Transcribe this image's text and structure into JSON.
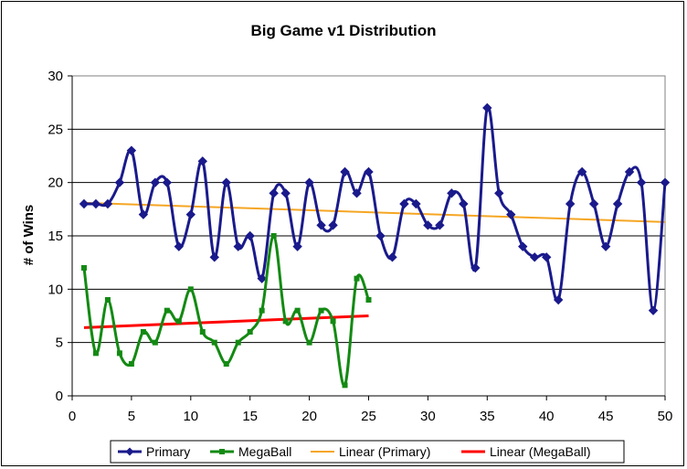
{
  "chart_data": {
    "type": "line",
    "title": "Big Game v1 Distribution",
    "xlabel": "",
    "ylabel": "# of Wins",
    "xlim": [
      0,
      50
    ],
    "ylim": [
      0,
      30
    ],
    "xticks": [
      0,
      5,
      10,
      15,
      20,
      25,
      30,
      35,
      40,
      45,
      50
    ],
    "yticks": [
      0,
      5,
      10,
      15,
      20,
      25,
      30
    ],
    "grid": "horizontal",
    "legend_position": "bottom",
    "series": [
      {
        "name": "Primary",
        "color": "#1a1a8c",
        "marker": "diamond",
        "x": [
          1,
          2,
          3,
          4,
          5,
          6,
          7,
          8,
          9,
          10,
          11,
          12,
          13,
          14,
          15,
          16,
          17,
          18,
          19,
          20,
          21,
          22,
          23,
          24,
          25,
          26,
          27,
          28,
          29,
          30,
          31,
          32,
          33,
          34,
          35,
          36,
          37,
          38,
          39,
          40,
          41,
          42,
          43,
          44,
          45,
          46,
          47,
          48,
          49,
          50
        ],
        "values": [
          18,
          18,
          18,
          20,
          23,
          17,
          20,
          20,
          14,
          17,
          22,
          13,
          20,
          14,
          15,
          11,
          19,
          19,
          14,
          20,
          16,
          16,
          21,
          19,
          21,
          15,
          13,
          18,
          18,
          16,
          16,
          19,
          18,
          12,
          27,
          19,
          17,
          14,
          13,
          13,
          9,
          18,
          21,
          18,
          14,
          18,
          21,
          20,
          8,
          20
        ]
      },
      {
        "name": "MegaBall",
        "color": "#138a13",
        "marker": "square",
        "x": [
          1,
          2,
          3,
          4,
          5,
          6,
          7,
          8,
          9,
          10,
          11,
          12,
          13,
          14,
          15,
          16,
          17,
          18,
          19,
          20,
          21,
          22,
          23,
          24,
          25
        ],
        "values": [
          12,
          4,
          9,
          4,
          3,
          6,
          5,
          8,
          7,
          10,
          6,
          5,
          3,
          5,
          6,
          8,
          15,
          7,
          8,
          5,
          8,
          7,
          1,
          11,
          9
        ]
      },
      {
        "name": "Linear (Primary)",
        "color": "#f5a623",
        "trendline": true,
        "x": [
          1,
          50
        ],
        "values": [
          18.1,
          16.3
        ]
      },
      {
        "name": "Linear (MegaBall)",
        "color": "#ff0000",
        "trendline": true,
        "x": [
          1,
          25
        ],
        "values": [
          6.4,
          7.5
        ]
      }
    ]
  }
}
